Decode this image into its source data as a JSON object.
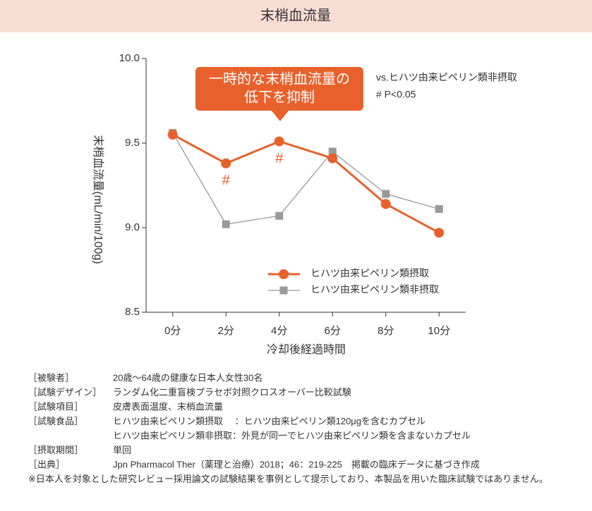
{
  "chart_data": {
    "type": "line",
    "title": "末梢血流量",
    "y_label": "末梢血流量(mL/min/100g)",
    "x_label": "冷却後経過時間",
    "categories": [
      "0分",
      "2分",
      "4分",
      "6分",
      "8分",
      "10分"
    ],
    "series": [
      {
        "name": "ヒハツ由来ピペリン類摂取",
        "color": "#e8612c",
        "marker": "circle",
        "values": [
          9.55,
          9.38,
          9.51,
          9.41,
          9.14,
          8.97
        ],
        "significance_labels": [
          null,
          "#",
          "#",
          null,
          null,
          null
        ]
      },
      {
        "name": "ヒハツ由来ピペリン類非摂取",
        "color": "#999999",
        "marker": "square",
        "values": [
          9.56,
          9.02,
          9.07,
          9.45,
          9.2,
          9.11
        ]
      }
    ],
    "ylim": [
      8.5,
      10.0
    ],
    "yticks": [
      8.5,
      {
        "value": 9.0,
        "label": "9.0"
      },
      9.5,
      {
        "value": 10.0,
        "label": "10.0"
      }
    ],
    "grid": false,
    "legend": "lower right",
    "callout": {
      "lines": [
        "一時的な末梢血流量の",
        "低下を抑制"
      ],
      "color": "#e8612c"
    },
    "annotations": [
      "vs.ヒハツ由来ピペリン類非摂取",
      "# P<0.05"
    ]
  },
  "notes": {
    "rows": [
      {
        "label": "［被験者］",
        "lines": [
          "20歳～64歳の健康な日本人女性30名"
        ]
      },
      {
        "label": "［試験デザイン］",
        "lines": [
          "ランダム化二重盲検プラセボ対照クロスオーバー比較試験"
        ]
      },
      {
        "label": "［試験項目］",
        "lines": [
          "皮膚表面温度、末梢血流量"
        ]
      },
      {
        "label": "［試験食品］",
        "lines": [
          "ヒハツ由来ピペリン類摂取　 ：ヒハツ由来ピペリン類120μgを含むカプセル",
          "ヒハツ由来ピペリン類非摂取：外見が同一でヒハツ由来ピペリン類を含まないカプセル"
        ]
      },
      {
        "label": "［摂取期間］",
        "lines": [
          "単回"
        ]
      },
      {
        "label": "［出典］",
        "lines": [
          "Jpn Pharmacol Ther（薬理と治療）2018；46：219-225　掲載の臨床データに基づき作成"
        ]
      }
    ],
    "footnote": "※日本人を対象とした研究レビュー採用論文の試験結果を事例として提示しており、本製品を用いた臨床試験ではありません。"
  }
}
